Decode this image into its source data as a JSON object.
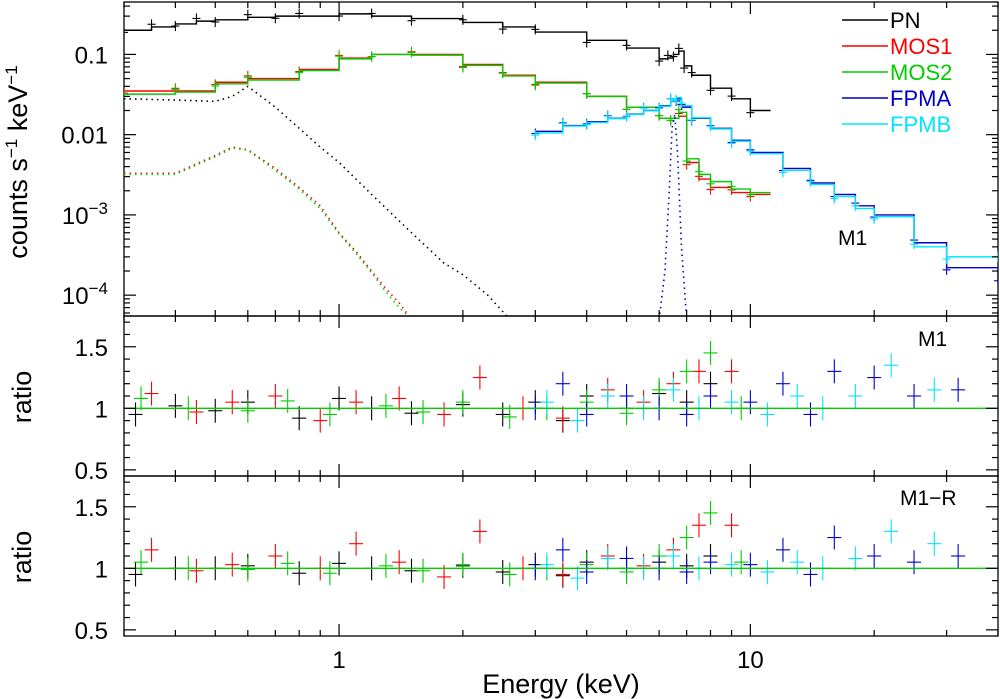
{
  "chart_data": [
    {
      "type": "line",
      "panel": "spectrum",
      "tag": "M1",
      "xscale": "log",
      "yscale": "log",
      "xlim": [
        0.3,
        40
      ],
      "ylim": [
        5.5e-05,
        0.45
      ],
      "ylabel": "counts s",
      "ylabel_sup1": "−1",
      "ylabel_mid": " keV",
      "ylabel_sup2": "−1",
      "yticks": [
        {
          "v": 0.1,
          "label": "0.1"
        },
        {
          "v": 0.01,
          "label": "0.01"
        },
        {
          "v": 0.001,
          "base": "10",
          "exp": "−3"
        },
        {
          "v": 0.0001,
          "base": "10",
          "exp": "−4"
        }
      ],
      "legend": {
        "position": "top-right",
        "entries": [
          "PN",
          "MOS1",
          "MOS2",
          "FPMA",
          "FPMB"
        ]
      },
      "series": [
        {
          "name": "PN",
          "color": "#000000",
          "kind": "model",
          "x": [
            0.3,
            0.35,
            0.4,
            0.45,
            0.5,
            0.6,
            0.7,
            0.8,
            1.0,
            1.2,
            1.5,
            2.0,
            2.5,
            3.0,
            4.0,
            5.0,
            6.0,
            6.3,
            6.5,
            6.7,
            6.9,
            7.2,
            8.0,
            9.0,
            10.0
          ],
          "y": [
            0.2,
            0.22,
            0.24,
            0.26,
            0.27,
            0.29,
            0.3,
            0.3,
            0.32,
            0.3,
            0.28,
            0.25,
            0.22,
            0.19,
            0.15,
            0.12,
            0.088,
            0.09,
            0.1,
            0.11,
            0.072,
            0.055,
            0.038,
            0.028,
            0.02
          ]
        },
        {
          "name": "MOS1",
          "color": "#ff0000",
          "kind": "model",
          "x": [
            0.3,
            0.4,
            0.5,
            0.6,
            0.8,
            1.0,
            1.2,
            1.5,
            2.0,
            2.5,
            3.0,
            4.0,
            5.0,
            6.0,
            6.4,
            6.7,
            7.0,
            7.5,
            8.0,
            9.0,
            10.0
          ],
          "y": [
            0.035,
            0.035,
            0.045,
            0.05,
            0.065,
            0.09,
            0.1,
            0.1,
            0.075,
            0.055,
            0.045,
            0.03,
            0.022,
            0.016,
            0.016,
            0.017,
            0.0045,
            0.0028,
            0.0022,
            0.0019,
            0.0018
          ]
        },
        {
          "name": "MOS2",
          "color": "#00cc00",
          "kind": "model",
          "x": [
            0.3,
            0.4,
            0.5,
            0.6,
            0.8,
            1.0,
            1.2,
            1.5,
            2.0,
            2.5,
            3.0,
            4.0,
            5.0,
            6.0,
            6.4,
            6.7,
            7.0,
            7.5,
            8.0,
            9.0,
            10.0
          ],
          "y": [
            0.032,
            0.034,
            0.043,
            0.048,
            0.063,
            0.088,
            0.1,
            0.098,
            0.073,
            0.054,
            0.044,
            0.03,
            0.022,
            0.016,
            0.016,
            0.019,
            0.005,
            0.0032,
            0.0026,
            0.0021,
            0.0019
          ]
        },
        {
          "name": "FPMA",
          "color": "#0000cc",
          "kind": "model",
          "x": [
            3.0,
            3.5,
            4.0,
            4.5,
            5.0,
            5.5,
            6.0,
            6.4,
            6.6,
            6.8,
            7.2,
            8.0,
            9.0,
            10.0,
            12.0,
            14.0,
            16.0,
            18.0,
            20.0,
            25.0,
            30.0,
            40.0
          ],
          "y": [
            0.011,
            0.013,
            0.0145,
            0.016,
            0.018,
            0.02,
            0.023,
            0.026,
            0.028,
            0.022,
            0.016,
            0.012,
            0.0085,
            0.006,
            0.0038,
            0.0025,
            0.0018,
            0.0013,
            0.001,
            0.00045,
            0.00022,
            0.00014
          ]
        },
        {
          "name": "FPMB",
          "color": "#00e5ff",
          "kind": "model",
          "x": [
            3.0,
            3.5,
            4.0,
            4.5,
            5.0,
            5.5,
            6.0,
            6.4,
            6.6,
            6.8,
            7.2,
            8.0,
            9.0,
            10.0,
            12.0,
            14.0,
            16.0,
            18.0,
            20.0,
            25.0,
            30.0,
            40.0
          ],
          "y": [
            0.0105,
            0.0128,
            0.0142,
            0.0158,
            0.0178,
            0.0198,
            0.0226,
            0.0262,
            0.029,
            0.023,
            0.0162,
            0.0118,
            0.0083,
            0.0058,
            0.0036,
            0.0024,
            0.0017,
            0.0012,
            0.00095,
            0.0004,
            0.0003,
            0.00028
          ]
        },
        {
          "name": "PN soft component",
          "color": "#000000",
          "kind": "component",
          "x": [
            0.3,
            0.4,
            0.5,
            0.55,
            0.6,
            0.7,
            0.8,
            0.9,
            1.0,
            1.2,
            1.5,
            1.8,
            2.0,
            2.3,
            2.6
          ],
          "y": [
            0.028,
            0.027,
            0.026,
            0.03,
            0.04,
            0.022,
            0.012,
            0.007,
            0.0045,
            0.0018,
            0.0006,
            0.00025,
            0.00018,
            0.0001,
            5e-05
          ]
        },
        {
          "name": "MOS1 soft component",
          "color": "#ff0000",
          "kind": "component",
          "x": [
            0.3,
            0.4,
            0.5,
            0.55,
            0.6,
            0.7,
            0.8,
            0.9,
            1.0,
            1.1,
            1.2,
            1.3,
            1.4,
            1.5
          ],
          "y": [
            0.0033,
            0.0033,
            0.0055,
            0.007,
            0.0065,
            0.0038,
            0.0022,
            0.0013,
            0.0006,
            0.00035,
            0.0002,
            0.00012,
            8e-05,
            5e-05
          ]
        },
        {
          "name": "MOS2 soft component",
          "color": "#00cc00",
          "kind": "component",
          "x": [
            0.3,
            0.4,
            0.5,
            0.55,
            0.6,
            0.7,
            0.8,
            0.9,
            1.0,
            1.1,
            1.2,
            1.3,
            1.4,
            1.5
          ],
          "y": [
            0.0032,
            0.0032,
            0.0053,
            0.0068,
            0.0064,
            0.0036,
            0.0021,
            0.0012,
            0.00058,
            0.00033,
            0.00019,
            0.00011,
            7e-05,
            5e-05
          ]
        },
        {
          "name": "Fe line component",
          "color": "#0000cc",
          "kind": "component",
          "x": [
            6.0,
            6.2,
            6.35,
            6.45,
            6.55,
            6.65,
            6.8,
            7.0
          ],
          "y": [
            5e-05,
            0.0002,
            0.002,
            0.012,
            0.018,
            0.006,
            0.0004,
            5e-05
          ]
        }
      ]
    },
    {
      "type": "scatter",
      "panel": "ratio",
      "tag": "M1",
      "xscale": "log",
      "xlim": [
        0.3,
        40
      ],
      "ylim": [
        0.45,
        1.75
      ],
      "ylabel": "ratio",
      "yticks": [
        {
          "v": 0.5,
          "label": "0.5"
        },
        {
          "v": 1,
          "label": "1"
        },
        {
          "v": 1.5,
          "label": "1.5"
        }
      ],
      "reference_line": 1,
      "series": [
        {
          "name": "PN",
          "color": "#000000",
          "x": [
            0.32,
            0.4,
            0.5,
            0.6,
            0.8,
            1.0,
            1.2,
            1.5,
            2.0,
            2.5,
            3.0,
            3.5,
            4.0,
            5.0,
            6.0,
            7.0,
            8.0
          ],
          "y": [
            0.95,
            1.02,
            0.98,
            1.05,
            0.92,
            1.08,
            1.0,
            0.96,
            1.03,
            0.95,
            1.05,
            0.9,
            1.1,
            1.0,
            1.12,
            1.05,
            1.2
          ]
        },
        {
          "name": "MOS1",
          "color": "#ff0000",
          "x": [
            0.35,
            0.45,
            0.55,
            0.7,
            0.9,
            1.1,
            1.4,
            1.8,
            2.2,
            2.8,
            3.5,
            4.5,
            5.5,
            6.5,
            7.5,
            9.0
          ],
          "y": [
            1.12,
            0.97,
            1.05,
            1.1,
            0.9,
            1.05,
            1.08,
            0.95,
            1.25,
            1.0,
            0.92,
            1.15,
            1.05,
            1.2,
            1.3,
            1.3
          ]
        },
        {
          "name": "MOS2",
          "color": "#00cc00",
          "x": [
            0.33,
            0.43,
            0.6,
            0.75,
            0.95,
            1.3,
            1.6,
            2.0,
            2.6,
            3.2,
            4.0,
            5.0,
            6.0,
            7.0,
            8.0,
            9.5
          ],
          "y": [
            1.08,
            1.0,
            0.98,
            1.06,
            0.95,
            1.02,
            0.97,
            1.05,
            0.93,
            1.0,
            1.05,
            0.96,
            1.15,
            1.3,
            1.45,
            1.0
          ]
        },
        {
          "name": "FPMA",
          "color": "#0000cc",
          "x": [
            3.0,
            3.5,
            4.0,
            5.0,
            6.0,
            7.0,
            8.0,
            10.0,
            12.0,
            14.0,
            16.0,
            20.0,
            25.0,
            32.0
          ],
          "y": [
            1.0,
            1.2,
            0.95,
            1.1,
            1.0,
            0.95,
            1.1,
            1.05,
            1.2,
            0.95,
            1.3,
            1.25,
            1.1,
            1.15
          ]
        },
        {
          "name": "FPMB",
          "color": "#00e5ff",
          "x": [
            3.2,
            3.8,
            4.5,
            5.5,
            6.5,
            7.5,
            9.0,
            11.0,
            13.0,
            15.0,
            18.0,
            22.0,
            28.0
          ],
          "y": [
            1.05,
            0.9,
            1.1,
            1.0,
            1.15,
            1.0,
            1.05,
            0.95,
            1.1,
            1.0,
            1.1,
            1.35,
            1.15
          ]
        }
      ]
    },
    {
      "type": "scatter",
      "panel": "ratio",
      "tag": "M1−R",
      "xscale": "log",
      "xlim": [
        0.3,
        40
      ],
      "ylim": [
        0.45,
        1.75
      ],
      "xlabel": "Energy (keV)",
      "xticks": [
        {
          "v": 1,
          "label": "1"
        },
        {
          "v": 10,
          "label": "10"
        }
      ],
      "ylabel": "ratio",
      "yticks": [
        {
          "v": 0.5,
          "label": "0.5"
        },
        {
          "v": 1,
          "label": "1"
        },
        {
          "v": 1.5,
          "label": "1.5"
        }
      ],
      "reference_line": 1,
      "series": [
        {
          "name": "PN",
          "color": "#000000",
          "x": [
            0.32,
            0.4,
            0.5,
            0.6,
            0.8,
            1.0,
            1.2,
            1.5,
            2.0,
            2.5,
            3.0,
            3.5,
            4.0,
            5.0,
            6.0,
            7.0,
            8.0
          ],
          "y": [
            0.95,
            1.0,
            1.0,
            1.02,
            0.96,
            1.04,
            1.0,
            0.98,
            1.02,
            0.97,
            1.03,
            0.94,
            1.05,
            1.0,
            1.05,
            1.02,
            1.1
          ]
        },
        {
          "name": "MOS1",
          "color": "#ff0000",
          "x": [
            0.35,
            0.45,
            0.55,
            0.7,
            0.9,
            1.1,
            1.4,
            1.8,
            2.2,
            2.8,
            3.5,
            4.5,
            5.5,
            6.5,
            7.5,
            9.0
          ],
          "y": [
            1.15,
            0.98,
            1.03,
            1.1,
            1.0,
            1.2,
            1.05,
            0.93,
            1.3,
            1.0,
            0.95,
            1.1,
            1.02,
            1.15,
            1.35,
            1.35
          ]
        },
        {
          "name": "MOS2",
          "color": "#00cc00",
          "x": [
            0.33,
            0.43,
            0.6,
            0.75,
            0.95,
            1.3,
            1.6,
            2.0,
            2.6,
            3.2,
            4.0,
            5.0,
            6.0,
            7.0,
            8.0,
            9.5
          ],
          "y": [
            1.05,
            1.0,
            0.99,
            1.04,
            0.96,
            1.02,
            0.98,
            1.03,
            0.95,
            1.0,
            1.03,
            0.97,
            1.1,
            1.25,
            1.45,
            1.05
          ]
        },
        {
          "name": "FPMA",
          "color": "#0000cc",
          "x": [
            3.0,
            3.5,
            4.0,
            5.0,
            6.0,
            7.0,
            8.0,
            10.0,
            12.0,
            14.0,
            16.0,
            20.0,
            25.0,
            32.0
          ],
          "y": [
            1.0,
            1.15,
            0.97,
            1.08,
            1.0,
            0.97,
            1.05,
            1.03,
            1.15,
            0.95,
            1.25,
            1.1,
            1.05,
            1.1
          ]
        },
        {
          "name": "FPMB",
          "color": "#00e5ff",
          "x": [
            3.2,
            3.8,
            4.5,
            5.5,
            6.5,
            7.5,
            9.0,
            11.0,
            13.0,
            15.0,
            18.0,
            22.0,
            28.0
          ],
          "y": [
            1.03,
            0.92,
            1.08,
            1.0,
            1.1,
            1.0,
            1.03,
            0.97,
            1.05,
            1.0,
            1.08,
            1.3,
            1.2
          ]
        }
      ]
    }
  ]
}
